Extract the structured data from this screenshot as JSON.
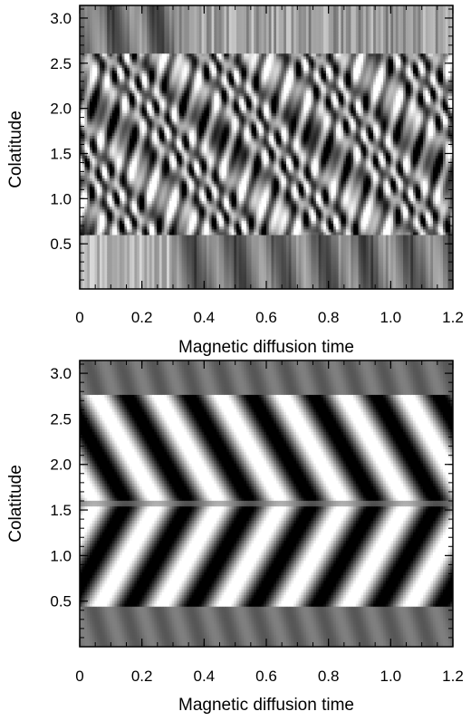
{
  "chart_data": [
    {
      "type": "heatmap",
      "panel": "top",
      "title": "",
      "xlabel": "Magnetic diffusion time",
      "ylabel": "Colatitude",
      "xlim": [
        0,
        1.2
      ],
      "ylim": [
        0,
        3.14
      ],
      "xticks": [
        "0",
        "0.2",
        "0.4",
        "0.6",
        "0.8",
        "1.0",
        "1.2"
      ],
      "yticks": [
        "0.5",
        "1.0",
        "1.5",
        "2.0",
        "2.5",
        "3.0"
      ],
      "colormap": "grayscale",
      "pattern": "irregular small-scale butterfly pattern between colatitude 0.6 and 2.6",
      "legend": "none",
      "grid": false
    },
    {
      "type": "heatmap",
      "panel": "bottom",
      "title": "",
      "xlabel": "Magnetic diffusion time",
      "ylabel": "Colatitude",
      "xlim": [
        0,
        1.2
      ],
      "ylim": [
        0,
        3.14
      ],
      "xticks": [
        "0",
        "0.2",
        "0.4",
        "0.6",
        "0.8",
        "1.0",
        "1.2"
      ],
      "yticks": [
        "0.5",
        "1.0",
        "1.5",
        "2.0",
        "2.5",
        "3.0"
      ],
      "colormap": "grayscale",
      "pattern": "regular oscillatory dynamo waves mirrored about the equator (colatitude 1.57)",
      "period": 0.2,
      "legend": "none",
      "grid": false
    }
  ]
}
